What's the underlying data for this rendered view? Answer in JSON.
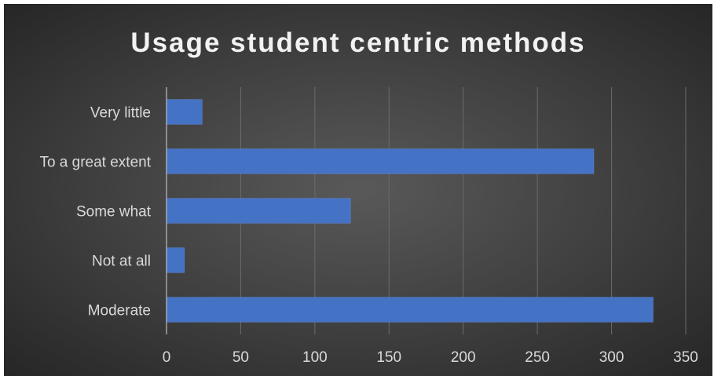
{
  "chart_data": {
    "type": "bar",
    "orientation": "horizontal",
    "title": "Usage student centric methods",
    "categories": [
      "Very little",
      "To a great extent",
      "Some what",
      "Not at all",
      "Moderate"
    ],
    "values": [
      24,
      288,
      124,
      12,
      328
    ],
    "xlim": [
      0,
      350
    ],
    "xticks": [
      "0",
      "50",
      "100",
      "150",
      "200",
      "250",
      "300",
      "350"
    ],
    "grid": true,
    "legend": "none",
    "colors": {
      "bar": "#4472c4",
      "background": "#404040",
      "grid": "#6b6b6b",
      "text": "#d9d9d9"
    }
  }
}
